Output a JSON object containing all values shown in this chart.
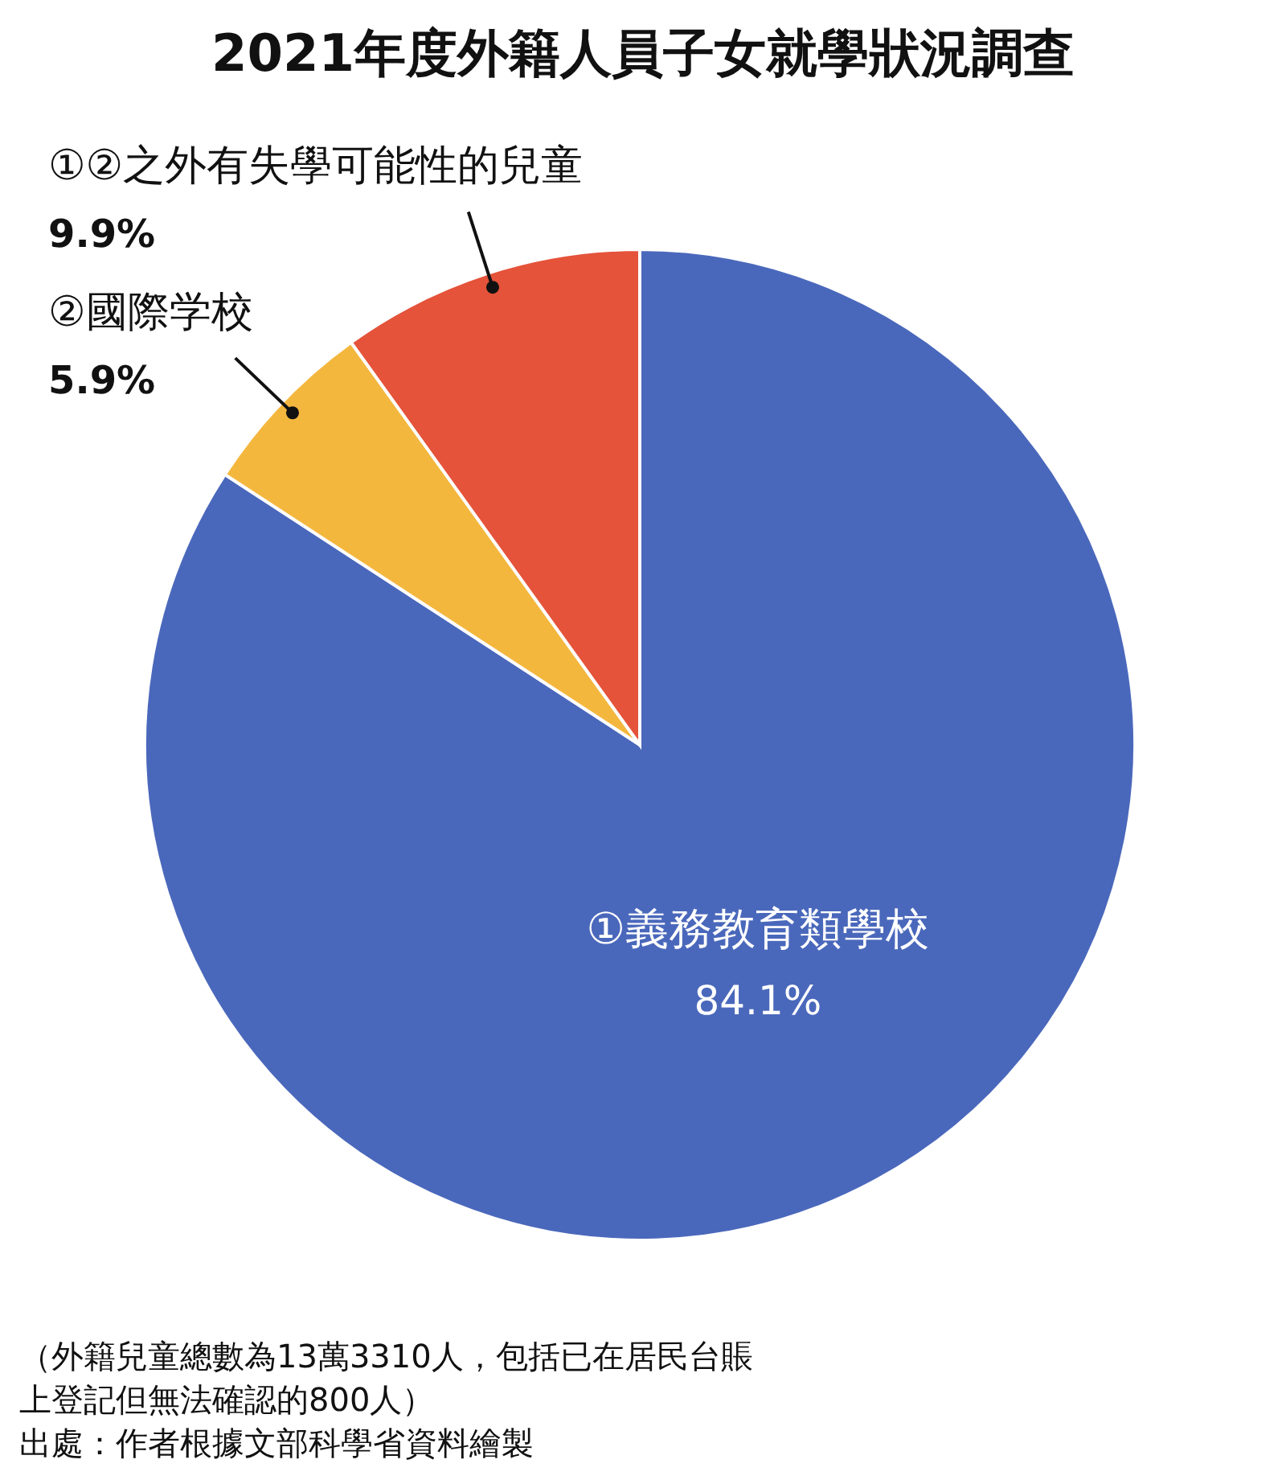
{
  "chart_data": {
    "type": "pie",
    "title": "2021年度外籍人員子女就學狀況調查",
    "categories": [
      "①義務教育類學校",
      "②國際学校",
      "①②之外有失學可能性的兒童"
    ],
    "values": [
      84.1,
      5.9,
      9.9
    ],
    "value_labels": [
      "84.1%",
      "5.9%",
      "9.9%"
    ],
    "colors": [
      "#4a68bb",
      "#f4b73e",
      "#e4533a"
    ],
    "annotations": [
      "（外籍兒童總數為13萬3310人，包括已在居民台賬",
      "上登記但無法確認的800人）",
      "出處：作者根據文部科學省資料繪製"
    ]
  }
}
